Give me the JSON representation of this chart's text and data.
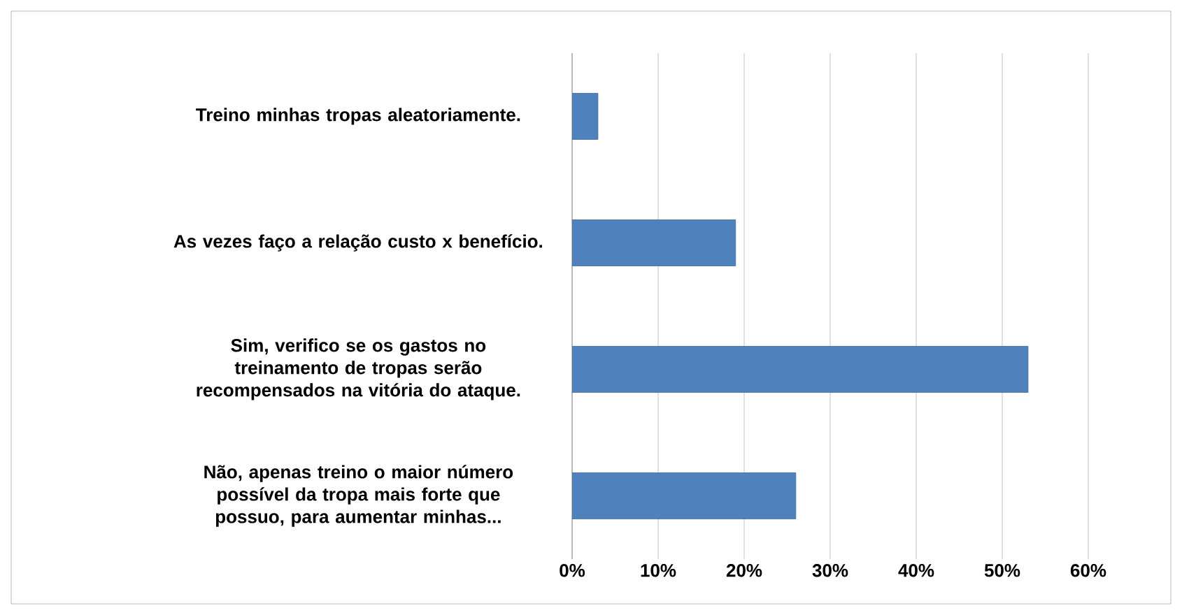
{
  "chart_data": {
    "type": "bar",
    "orientation": "horizontal",
    "categories": [
      "Treino minhas tropas aleatoriamente.",
      "As vezes faço a relação custo x benefício.",
      "Sim, verifico se os gastos no treinamento de tropas serão recompensados na vitória do ataque.",
      "Não, apenas treino o maior número possível da tropa mais forte que possuo, para aumentar minhas..."
    ],
    "values": [
      3,
      19,
      53,
      26
    ],
    "color": "#4f81bd",
    "xlim": [
      0,
      60
    ],
    "xticks": [
      {
        "value": 0,
        "label": "0%"
      },
      {
        "value": 10,
        "label": "10%"
      },
      {
        "value": 20,
        "label": "20%"
      },
      {
        "value": 30,
        "label": "30%"
      },
      {
        "value": 40,
        "label": "40%"
      },
      {
        "value": 50,
        "label": "50%"
      },
      {
        "value": 60,
        "label": "60%"
      }
    ],
    "grid": "x"
  }
}
